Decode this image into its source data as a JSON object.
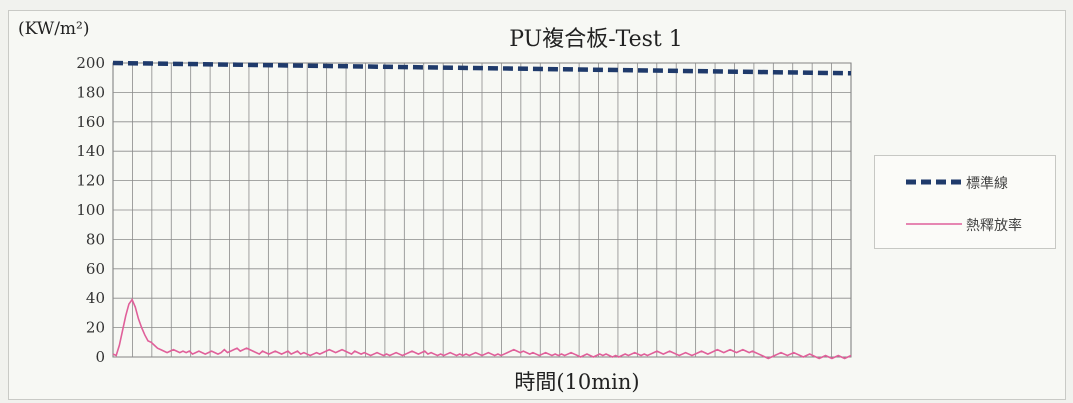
{
  "chart_data": {
    "type": "line",
    "title": "PU複合板-Test 1",
    "ylabel": "(KW/m²)",
    "xlabel": "時間(10min)",
    "ylim": [
      0,
      200
    ],
    "yticks": [
      "0",
      "20",
      "40",
      "60",
      "80",
      "100",
      "120",
      "140",
      "160",
      "180",
      "200"
    ],
    "x_gridlines": 38,
    "grid": true,
    "legend_placement": "right",
    "series": [
      {
        "name": "標準線",
        "style": "dashed",
        "color": "#1f3a6b",
        "x": [
          0,
          1
        ],
        "values": [
          200,
          193
        ]
      },
      {
        "name": "熱釋放率",
        "style": "solid",
        "color": "#e0609a",
        "x_start": 0,
        "x_end": 1,
        "values": [
          2,
          1,
          8,
          18,
          28,
          36,
          39,
          34,
          26,
          20,
          15,
          11,
          10,
          8,
          6,
          5,
          4,
          3,
          4,
          5,
          4,
          3,
          4,
          3,
          4,
          2,
          3,
          4,
          3,
          2,
          3,
          4,
          3,
          2,
          3,
          5,
          3,
          4,
          5,
          6,
          4,
          5,
          6,
          5,
          4,
          3,
          2,
          4,
          3,
          2,
          3,
          4,
          3,
          2,
          3,
          4,
          2,
          3,
          4,
          2,
          3,
          2,
          1,
          2,
          3,
          2,
          3,
          4,
          5,
          4,
          3,
          4,
          5,
          4,
          3,
          2,
          4,
          3,
          2,
          3,
          2,
          1,
          2,
          3,
          2,
          1,
          2,
          1,
          2,
          3,
          2,
          1,
          2,
          3,
          4,
          3,
          2,
          3,
          4,
          2,
          3,
          2,
          1,
          2,
          1,
          2,
          3,
          2,
          1,
          2,
          1,
          2,
          1,
          2,
          3,
          2,
          1,
          2,
          3,
          2,
          1,
          2,
          1,
          2,
          3,
          4,
          5,
          4,
          3,
          4,
          3,
          2,
          3,
          2,
          1,
          2,
          3,
          2,
          1,
          2,
          1,
          2,
          1,
          2,
          3,
          2,
          1,
          0,
          1,
          2,
          1,
          0,
          1,
          2,
          1,
          2,
          1,
          0,
          1,
          0,
          1,
          2,
          1,
          2,
          3,
          2,
          1,
          2,
          1,
          2,
          3,
          4,
          3,
          2,
          3,
          4,
          3,
          2,
          1,
          2,
          3,
          2,
          1,
          2,
          3,
          4,
          3,
          2,
          3,
          4,
          5,
          4,
          3,
          4,
          5,
          4,
          3,
          4,
          5,
          4,
          3,
          4,
          3,
          2,
          1,
          0,
          -1,
          0,
          1,
          2,
          3,
          2,
          1,
          2,
          3,
          2,
          1,
          0,
          1,
          2,
          1,
          0,
          -1,
          0,
          1,
          0,
          -1,
          0,
          1,
          0,
          -1,
          0,
          1
        ]
      }
    ]
  }
}
